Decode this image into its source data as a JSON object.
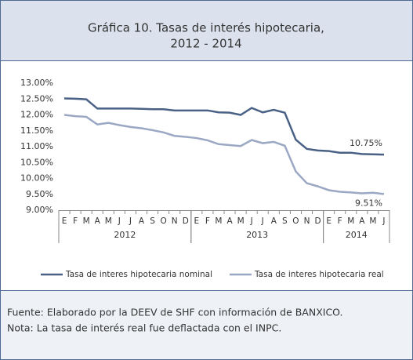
{
  "chart_data": {
    "type": "line",
    "title": [
      "Gráfica 10. Tasas de interés hipotecaria,",
      "2012 - 2014"
    ],
    "categories": [
      "E",
      "F",
      "M",
      "A",
      "M",
      "J",
      "J",
      "A",
      "S",
      "O",
      "N",
      "D",
      "E",
      "F",
      "M",
      "A",
      "M",
      "J",
      "J",
      "A",
      "S",
      "O",
      "N",
      "D",
      "E",
      "F",
      "M",
      "A",
      "M",
      "J"
    ],
    "category_groups": [
      {
        "label": "2012",
        "span": 12
      },
      {
        "label": "2013",
        "span": 12
      },
      {
        "label": "2014",
        "span": 6
      }
    ],
    "series": [
      {
        "name": "Tasa de interes hipotecaria nominal",
        "color": "#4a6186",
        "values": [
          12.52,
          12.51,
          12.49,
          12.2,
          12.2,
          12.2,
          12.2,
          12.19,
          12.18,
          12.18,
          12.14,
          12.14,
          12.14,
          12.14,
          12.08,
          12.07,
          12.0,
          12.22,
          12.08,
          12.16,
          12.07,
          11.22,
          10.93,
          10.88,
          10.86,
          10.81,
          10.81,
          10.77,
          10.76,
          10.75
        ],
        "value_labels": [
          null,
          null,
          null,
          null,
          null,
          null,
          null,
          null,
          null,
          null,
          null,
          null,
          null,
          null,
          null,
          null,
          null,
          null,
          null,
          null,
          null,
          null,
          null,
          null,
          null,
          null,
          null,
          null,
          null,
          "10.75%"
        ]
      },
      {
        "name": "Tasa de interes hipotecaria real",
        "color": "#9ba8c4",
        "values": [
          12.0,
          11.96,
          11.94,
          11.7,
          11.75,
          11.68,
          11.62,
          11.58,
          11.52,
          11.45,
          11.34,
          11.31,
          11.27,
          11.2,
          11.08,
          11.05,
          11.02,
          11.21,
          11.11,
          11.15,
          11.03,
          10.22,
          9.85,
          9.75,
          9.63,
          9.58,
          9.56,
          9.53,
          9.55,
          9.51
        ],
        "value_labels": [
          null,
          null,
          null,
          null,
          null,
          null,
          null,
          null,
          null,
          null,
          null,
          null,
          null,
          null,
          null,
          null,
          null,
          null,
          null,
          null,
          null,
          null,
          null,
          null,
          null,
          null,
          null,
          null,
          null,
          "9.51%"
        ]
      }
    ],
    "ylim": [
      9,
      13
    ],
    "yticks": [
      {
        "value": 9,
        "label": "9.00%"
      },
      {
        "value": 9.5,
        "label": "9.50%"
      },
      {
        "value": 10,
        "label": "10.00%"
      },
      {
        "value": 10.5,
        "label": "10.50%"
      },
      {
        "value": 11,
        "label": "11.00%"
      },
      {
        "value": 11.5,
        "label": "11.50%"
      },
      {
        "value": 12,
        "label": "12.00%"
      },
      {
        "value": 12.5,
        "label": "12.50%"
      },
      {
        "value": 13,
        "label": "13.00%"
      }
    ],
    "grid": false,
    "legend": "bottom"
  },
  "footer": [
    "Fuente: Elaborado por la DEEV de SHF con información de BANXICO.",
    "Nota: La tasa de interés real fue deflactada con el INPC."
  ]
}
